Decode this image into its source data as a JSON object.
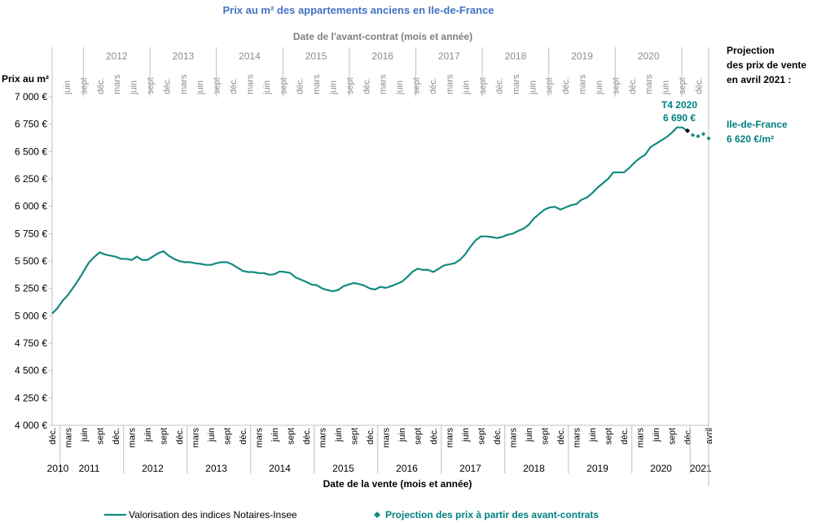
{
  "chart_data": {
    "type": "line",
    "title": "Prix au m² des appartements  anciens en Ile-de-France",
    "top_axis_title": "Date de l'avant-contrat (mois et année)",
    "xlabel": "Date de la vente (mois et année)",
    "ylabel": "Prix au m²",
    "ylim": [
      4000,
      7000
    ],
    "yticks": [
      "7 000 €",
      "6 750 €",
      "6 500 €",
      "6 250 €",
      "6 000 €",
      "5 750 €",
      "5 500 €",
      "5 250 €",
      "5 000 €",
      "4 750 €",
      "4 500 €",
      "4 250 €",
      "4 000 €"
    ],
    "bottom_ticks": [
      "déc.",
      "mars",
      "juin",
      "sept",
      "déc.",
      "mars",
      "juin",
      "sept",
      "déc.",
      "mars",
      "juin",
      "sept",
      "déc.",
      "mars",
      "juin",
      "sept",
      "déc.",
      "mars",
      "juin",
      "sept",
      "déc.",
      "mars",
      "juin",
      "sept",
      "déc.",
      "mars",
      "juin",
      "sept",
      "déc.",
      "mars",
      "juin",
      "sept",
      "déc.",
      "mars",
      "juin",
      "sept",
      "déc.",
      "mars",
      "juin",
      "sept",
      "déc.",
      "avril"
    ],
    "bottom_years": [
      "2010",
      "2011",
      "2012",
      "2013",
      "2014",
      "2015",
      "2016",
      "2017",
      "2018",
      "2019",
      "2020",
      "2021"
    ],
    "top_ticks": [
      "juin",
      "sept",
      "déc.",
      "mars",
      "juin",
      "sept",
      "déc.",
      "mars",
      "juin",
      "sept",
      "déc.",
      "mars",
      "juin",
      "sept",
      "déc.",
      "mars",
      "juin",
      "sept",
      "déc.",
      "mars",
      "juin",
      "sept",
      "déc.",
      "mars",
      "juin",
      "sept",
      "déc.",
      "mars",
      "juin",
      "sept",
      "déc.",
      "mars",
      "juin",
      "sept",
      "déc.",
      "mars",
      "juin",
      "sept",
      "déc."
    ],
    "top_years": [
      "2012",
      "2013",
      "2014",
      "2015",
      "2016",
      "2017",
      "2018",
      "2019",
      "2020"
    ],
    "series": [
      {
        "name": "Valorisation des indices Notaires-Insee",
        "color": "#138a80",
        "x": [
          "2010-12",
          "2011-01",
          "2011-02",
          "2011-03",
          "2011-04",
          "2011-05",
          "2011-06",
          "2011-07",
          "2011-08",
          "2011-09",
          "2011-10",
          "2011-11",
          "2011-12",
          "2012-01",
          "2012-02",
          "2012-03",
          "2012-04",
          "2012-05",
          "2012-06",
          "2012-07",
          "2012-08",
          "2012-09",
          "2012-10",
          "2012-11",
          "2012-12",
          "2013-01",
          "2013-02",
          "2013-03",
          "2013-04",
          "2013-05",
          "2013-06",
          "2013-07",
          "2013-08",
          "2013-09",
          "2013-10",
          "2013-11",
          "2013-12",
          "2014-01",
          "2014-02",
          "2014-03",
          "2014-04",
          "2014-05",
          "2014-06",
          "2014-07",
          "2014-08",
          "2014-09",
          "2014-10",
          "2014-11",
          "2014-12",
          "2015-01",
          "2015-02",
          "2015-03",
          "2015-04",
          "2015-05",
          "2015-06",
          "2015-07",
          "2015-08",
          "2015-09",
          "2015-10",
          "2015-11",
          "2015-12",
          "2016-01",
          "2016-02",
          "2016-03",
          "2016-04",
          "2016-05",
          "2016-06",
          "2016-07",
          "2016-08",
          "2016-09",
          "2016-10",
          "2016-11",
          "2016-12",
          "2017-01",
          "2017-02",
          "2017-03",
          "2017-04",
          "2017-05",
          "2017-06",
          "2017-07",
          "2017-08",
          "2017-09",
          "2017-10",
          "2017-11",
          "2017-12",
          "2018-01",
          "2018-02",
          "2018-03",
          "2018-04",
          "2018-05",
          "2018-06",
          "2018-07",
          "2018-08",
          "2018-09",
          "2018-10",
          "2018-11",
          "2018-12",
          "2019-01",
          "2019-02",
          "2019-03",
          "2019-04",
          "2019-05",
          "2019-06",
          "2019-07",
          "2019-08",
          "2019-09",
          "2019-10",
          "2019-11",
          "2019-12",
          "2020-01",
          "2020-02",
          "2020-03",
          "2020-04",
          "2020-05",
          "2020-06",
          "2020-07",
          "2020-08",
          "2020-09",
          "2020-10",
          "2020-11",
          "2020-12"
        ],
        "values": [
          5020,
          5070,
          5140,
          5190,
          5260,
          5330,
          5410,
          5490,
          5540,
          5580,
          5560,
          5550,
          5540,
          5520,
          5520,
          5510,
          5540,
          5510,
          5510,
          5540,
          5570,
          5590,
          5550,
          5520,
          5500,
          5490,
          5490,
          5480,
          5475,
          5465,
          5465,
          5480,
          5490,
          5490,
          5470,
          5440,
          5410,
          5400,
          5400,
          5390,
          5390,
          5375,
          5380,
          5405,
          5400,
          5390,
          5350,
          5330,
          5310,
          5285,
          5280,
          5250,
          5235,
          5225,
          5235,
          5270,
          5285,
          5300,
          5290,
          5275,
          5250,
          5240,
          5265,
          5255,
          5270,
          5290,
          5310,
          5350,
          5400,
          5430,
          5420,
          5420,
          5400,
          5430,
          5460,
          5470,
          5480,
          5510,
          5560,
          5630,
          5690,
          5725,
          5725,
          5720,
          5710,
          5720,
          5740,
          5750,
          5775,
          5795,
          5830,
          5890,
          5930,
          5970,
          5990,
          5995,
          5970,
          5990,
          6010,
          6020,
          6060,
          6080,
          6120,
          6170,
          6210,
          6250,
          6310,
          6310,
          6310,
          6350,
          6400,
          6440,
          6470,
          6540,
          6570,
          6600,
          6630,
          6670,
          6720,
          6720,
          6690
        ]
      },
      {
        "name": "Projection des prix à partir des avant-contrats",
        "color": "#138a80",
        "x": [
          "2021-01",
          "2021-02",
          "2021-03",
          "2021-04"
        ],
        "values": [
          6650,
          6640,
          6660,
          6620
        ]
      }
    ],
    "annotation": {
      "label": "T4 2020",
      "value": "6 690 €"
    },
    "grid": false,
    "legend_position": "bottom"
  },
  "side_panel": {
    "heading_line1": "Projection",
    "heading_line2": "des prix de vente",
    "heading_line3": "en avril 2021 :",
    "region": "Ile-de-France",
    "value": "6 620 €/m²"
  }
}
